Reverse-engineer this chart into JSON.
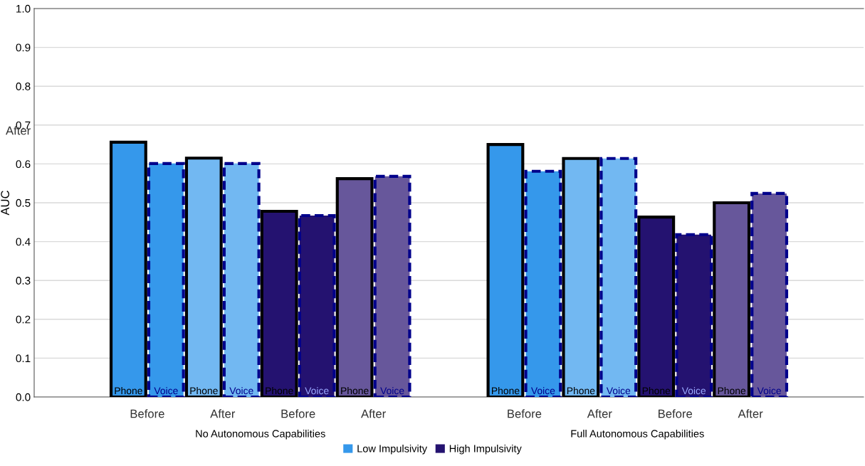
{
  "chart_data": {
    "type": "bar",
    "ylabel": "AUC",
    "categories": [
      null,
      null,
      "Phone",
      "Voice",
      "Phone",
      "Voice",
      "Phone",
      "Voice",
      "Phone",
      "Voice",
      null,
      null,
      "Phone",
      "Voice",
      "Phone",
      "Voice",
      "Phone",
      "Voice",
      "Phone",
      "Voice",
      null,
      null
    ],
    "series": [
      {
        "name": "Low Impulsivity",
        "color": "#3598eb",
        "line_style": "solid",
        "values": [
          null,
          null,
          0.656,
          null,
          0.615,
          null,
          null,
          null,
          null,
          null,
          null,
          null,
          0.65,
          null,
          0.614,
          null,
          null,
          null,
          null,
          null,
          null,
          null
        ],
        "colors": [
          null,
          null,
          "#3598eb",
          null,
          "#72b8f2",
          null,
          null,
          null,
          null,
          null,
          null,
          null,
          "#3598eb",
          null,
          "#72b8f2",
          null,
          null,
          null,
          null,
          null,
          null,
          null
        ]
      },
      {
        "line_style": "dashed",
        "values": [
          null,
          null,
          null,
          0.601,
          null,
          0.601,
          null,
          null,
          null,
          null,
          null,
          null,
          null,
          0.581,
          null,
          0.614,
          null,
          null,
          null,
          null,
          null,
          null
        ],
        "colors": [
          null,
          null,
          null,
          "#3598eb",
          null,
          "#72b8f2",
          null,
          null,
          null,
          null,
          null,
          null,
          null,
          "#3598eb",
          null,
          "#72b8f2",
          null,
          null,
          null,
          null,
          null,
          null
        ]
      },
      {
        "name": "High Impulsivity",
        "color": "#241270",
        "line_style": "solid",
        "values": [
          null,
          null,
          null,
          null,
          null,
          null,
          0.478,
          null,
          0.562,
          null,
          null,
          null,
          null,
          null,
          null,
          null,
          0.463,
          null,
          0.5,
          null,
          null,
          null
        ],
        "colors": [
          null,
          null,
          null,
          null,
          null,
          null,
          "#241270",
          null,
          "#67579b",
          null,
          null,
          null,
          null,
          null,
          null,
          null,
          "#241270",
          null,
          "#67579b",
          null,
          null,
          null
        ]
      },
      {
        "line_style": "dashed",
        "values": [
          null,
          null,
          null,
          null,
          null,
          null,
          null,
          0.467,
          null,
          0.568,
          null,
          null,
          null,
          null,
          null,
          null,
          null,
          0.418,
          null,
          0.524,
          null,
          null
        ],
        "colors": [
          null,
          null,
          null,
          null,
          null,
          null,
          null,
          "#241270",
          null,
          "#67579b",
          null,
          null,
          null,
          null,
          null,
          null,
          null,
          "#241270",
          null,
          "#67579b",
          null,
          null
        ]
      }
    ],
    "ylim": [
      0,
      1.0
    ],
    "yticks": [
      {
        "value": 0,
        "label": "0.0"
      },
      0.1,
      0.2,
      0.3,
      0.4,
      0.5,
      0.6,
      0.7,
      0.8,
      0.9,
      {
        "value": 1,
        "label": "1.0"
      }
    ],
    "grid": "y",
    "legend": "bottom",
    "annotations": [
      "After",
      "Before",
      "After",
      "Before",
      "After",
      "Before",
      "After",
      "Before",
      "After",
      "No Autonomous Capabilities",
      "Full Autonomous Capabilities"
    ]
  }
}
